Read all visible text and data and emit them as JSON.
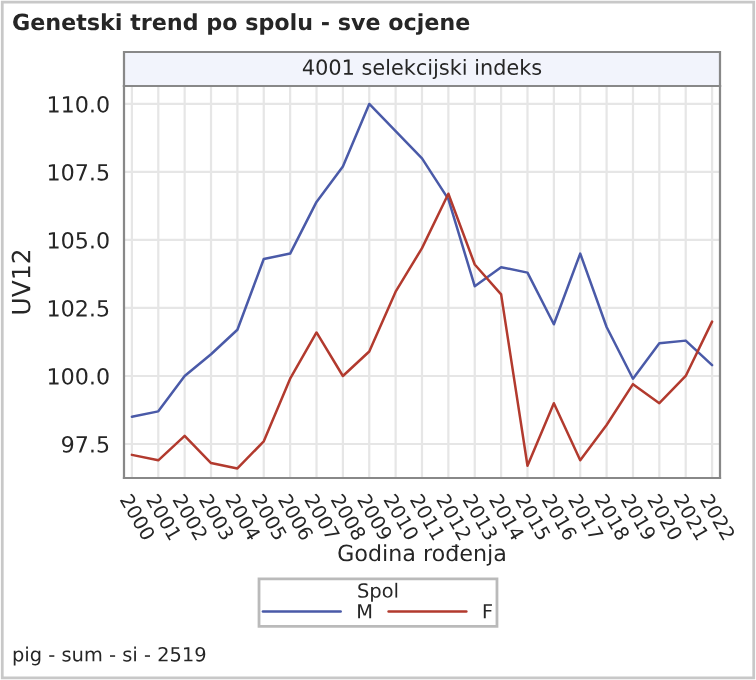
{
  "chart_data": {
    "type": "line",
    "title": "Genetski trend po spolu - sve ocjene",
    "subtitle": "4001 selekcijski indeks",
    "xlabel": "Godina rođenja",
    "ylabel": "UV12",
    "legend_title": "Spol",
    "annotations": [
      "pig - sum - si - 2519"
    ],
    "categories": [
      "2000",
      "2001",
      "2002",
      "2003",
      "2004",
      "2005",
      "2006",
      "2007",
      "2008",
      "2009",
      "2010",
      "2011",
      "2012",
      "2013",
      "2014",
      "2015",
      "2016",
      "2017",
      "2018",
      "2019",
      "2020",
      "2021",
      "2022"
    ],
    "series": [
      {
        "name": "M",
        "color": "#4a5aa8",
        "values": [
          98.5,
          98.7,
          100.0,
          100.8,
          101.7,
          104.3,
          104.5,
          106.4,
          107.7,
          110.0,
          109.0,
          108.0,
          106.5,
          103.3,
          104.0,
          103.8,
          101.9,
          104.5,
          101.8,
          99.9,
          101.2,
          101.3,
          100.4
        ]
      },
      {
        "name": "F",
        "color": "#b23a2e",
        "values": [
          97.1,
          96.9,
          97.8,
          96.8,
          96.6,
          97.6,
          99.9,
          101.6,
          100.0,
          100.9,
          103.1,
          104.7,
          106.7,
          104.1,
          103.0,
          96.7,
          99.0,
          96.9,
          98.2,
          99.7,
          99.0,
          100.0,
          102.0
        ]
      }
    ],
    "ylim": [
      96.25,
      110.66
    ],
    "yticks": [
      {
        "value": 97.5,
        "label": "97.5"
      },
      {
        "value": 100,
        "label": "100.0"
      },
      {
        "value": 102.5,
        "label": "102.5"
      },
      {
        "value": 105,
        "label": "105.0"
      },
      {
        "value": 107.5,
        "label": "107.5"
      },
      {
        "value": 110,
        "label": "110.0"
      }
    ],
    "grid": true,
    "legend": "bottom",
    "line_style": "solid",
    "marker": "none"
  }
}
